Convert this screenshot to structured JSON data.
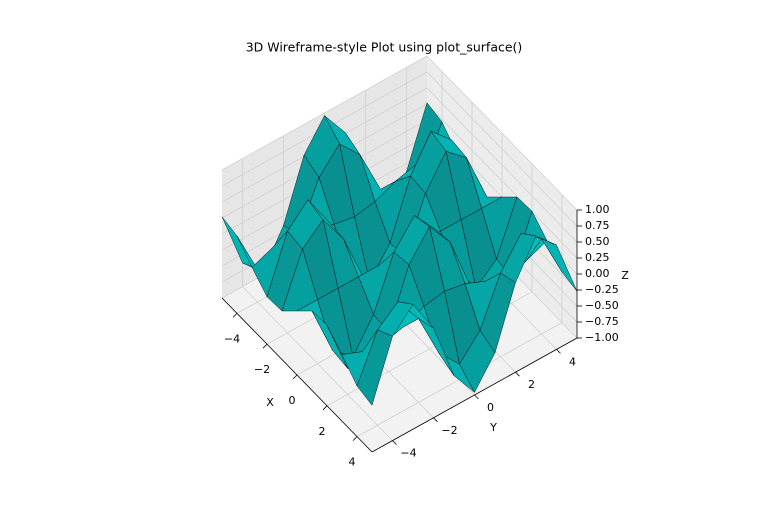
{
  "chart_data": {
    "type": "surface",
    "title": "3D Wireframe-style Plot using plot_surface()",
    "xlabel": "X",
    "ylabel": "Y",
    "zlabel": "Z",
    "color": "#00bfbf",
    "edgecolor": "#000000",
    "x": [
      -5,
      -4,
      -3,
      -2,
      -1,
      0,
      1,
      2,
      3,
      4,
      5
    ],
    "y": [
      -5,
      -4,
      -3,
      -2,
      -1,
      0,
      1,
      2,
      3,
      4,
      5
    ],
    "z": [
      [
        0.27,
        -0.63,
        -0.95,
        -0.4,
        0.52,
        0.96,
        0.52,
        -0.4,
        -0.95,
        -0.63,
        0.27
      ],
      [
        0.21,
        -0.49,
        -0.75,
        -0.31,
        0.41,
        0.76,
        0.41,
        -0.31,
        -0.75,
        -0.49,
        0.21
      ],
      [
        -0.04,
        0.09,
        0.14,
        0.06,
        -0.08,
        -0.14,
        -0.08,
        0.06,
        0.14,
        0.09,
        -0.04
      ],
      [
        -0.26,
        0.59,
        0.9,
        0.38,
        -0.49,
        -0.91,
        -0.49,
        0.38,
        0.9,
        0.59,
        -0.26
      ],
      [
        -0.24,
        0.55,
        0.83,
        0.35,
        -0.45,
        -0.84,
        -0.45,
        0.35,
        0.83,
        0.55,
        -0.24
      ],
      [
        0,
        0,
        0,
        0,
        0,
        0,
        0,
        0,
        0,
        0,
        0
      ],
      [
        0.24,
        -0.55,
        -0.83,
        -0.35,
        0.45,
        0.84,
        0.45,
        -0.35,
        -0.83,
        -0.55,
        0.24
      ],
      [
        0.26,
        -0.59,
        -0.9,
        -0.38,
        0.49,
        0.91,
        0.49,
        -0.38,
        -0.9,
        -0.59,
        0.26
      ],
      [
        0.04,
        -0.09,
        -0.14,
        -0.06,
        0.08,
        0.14,
        0.08,
        -0.06,
        -0.14,
        -0.09,
        0.04
      ],
      [
        -0.21,
        0.49,
        0.75,
        0.31,
        -0.41,
        -0.76,
        -0.41,
        0.31,
        0.75,
        0.49,
        -0.21
      ],
      [
        -0.27,
        0.63,
        0.95,
        0.4,
        -0.52,
        -0.96,
        -0.52,
        0.4,
        0.95,
        0.63,
        -0.27
      ]
    ],
    "xlim": [
      -5,
      5
    ],
    "ylim": [
      -5,
      5
    ],
    "zlim": [
      -1,
      1
    ],
    "xticks": [
      {
        "value": -4,
        "label": "−4"
      },
      {
        "value": -2,
        "label": "−2"
      },
      0,
      2,
      4
    ],
    "yticks": [
      {
        "value": -4,
        "label": "−4"
      },
      {
        "value": -2,
        "label": "−2"
      },
      0,
      2,
      4
    ],
    "zticks": [
      {
        "value": -1,
        "label": "−1.00"
      },
      {
        "value": -0.75,
        "label": "−0.75"
      },
      {
        "value": -0.5,
        "label": "−0.50"
      },
      {
        "value": -0.25,
        "label": "−0.25"
      },
      {
        "value": 0,
        "label": "0.00"
      },
      {
        "value": 0.25,
        "label": "0.25"
      },
      {
        "value": 0.5,
        "label": "0.50"
      },
      {
        "value": 0.75,
        "label": "0.75"
      },
      {
        "value": 1,
        "label": "1.00"
      }
    ],
    "grid": true
  }
}
